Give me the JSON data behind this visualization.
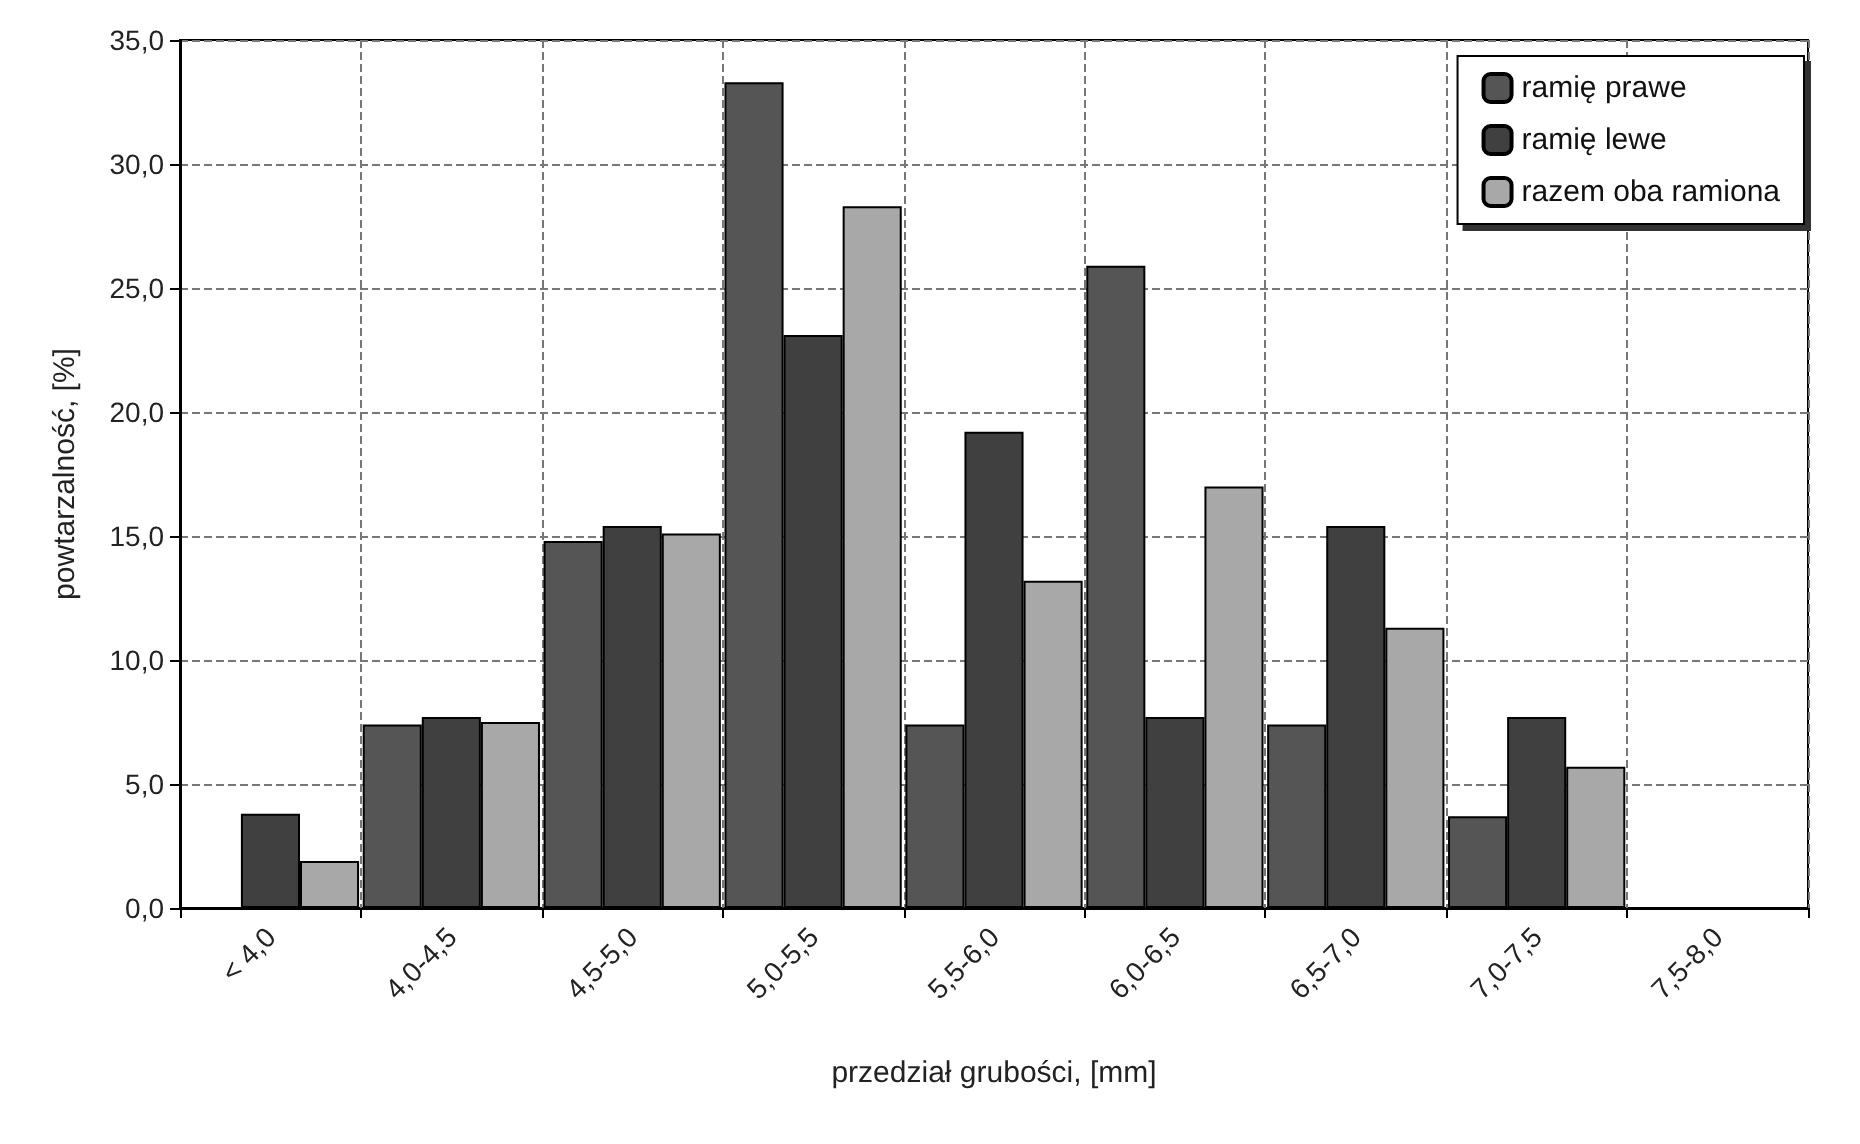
{
  "chart_data": {
    "type": "bar",
    "xlabel": "przedział grubości, [mm]",
    "ylabel": "powtarzalność, [%]",
    "categories": [
      "< 4,0",
      "4,0-4,5",
      "4,5-5,0",
      "5,0-5,5",
      "5,5-6,0",
      "6,0-6,5",
      "6,5-7,0",
      "7,0-7,5",
      "7,5-8,0"
    ],
    "series": [
      {
        "name": "ramię prawe",
        "color": "#555555",
        "values": [
          null,
          7.4,
          14.8,
          33.3,
          7.4,
          25.9,
          7.4,
          3.7,
          null
        ]
      },
      {
        "name": "ramię lewe",
        "color": "#404040",
        "values": [
          3.8,
          7.7,
          15.4,
          23.1,
          19.2,
          7.7,
          15.4,
          7.7,
          null
        ]
      },
      {
        "name": "razem oba ramiona",
        "color": "#a8a8a8",
        "values": [
          1.9,
          7.5,
          15.1,
          28.3,
          13.2,
          17.0,
          11.3,
          5.7,
          null
        ]
      }
    ],
    "ylim": [
      0,
      35
    ],
    "yticks": [
      {
        "value": 0,
        "label": "0,0"
      },
      {
        "value": 5,
        "label": "5,0"
      },
      {
        "value": 10,
        "label": "10,0"
      },
      {
        "value": 15,
        "label": "15,0"
      },
      {
        "value": 20,
        "label": "20,0"
      },
      {
        "value": 25,
        "label": "25,0"
      },
      {
        "value": 30,
        "label": "30,0"
      },
      {
        "value": 35,
        "label": "35,0"
      }
    ],
    "grid": true,
    "legend": "top right"
  }
}
